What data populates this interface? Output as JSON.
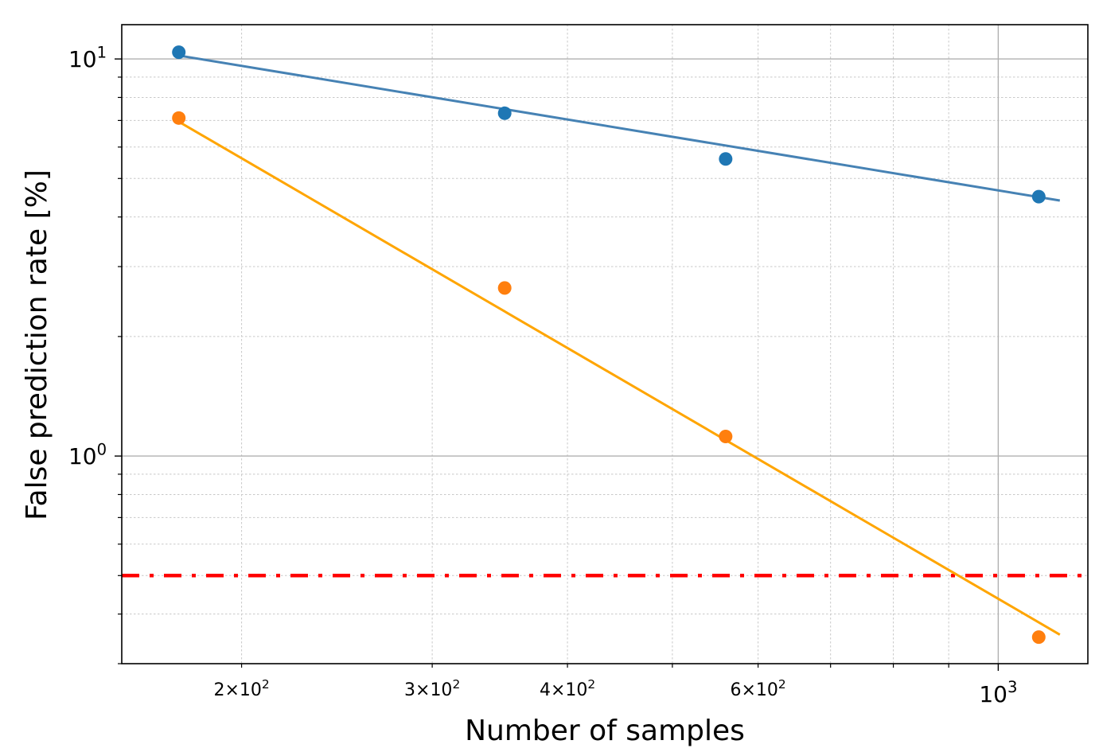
{
  "chart_data": {
    "type": "scatter",
    "title": "",
    "xlabel": "Number of samples",
    "ylabel": "False prediction rate [%]",
    "xscale": "log",
    "yscale": "log",
    "xlim": [
      155,
      1210
    ],
    "ylim": [
      0.3,
      12.2
    ],
    "grid": true,
    "legend": "none",
    "x_major_ticks": [
      {
        "value": 1000,
        "base": "10",
        "exp": "3"
      }
    ],
    "x_minor_ticks": [
      {
        "value": 200,
        "mant": "2",
        "base": "10",
        "exp": "2"
      },
      {
        "value": 300,
        "mant": "3",
        "base": "10",
        "exp": "2"
      },
      {
        "value": 400,
        "mant": "4",
        "base": "10",
        "exp": "2"
      },
      {
        "value": 600,
        "mant": "6",
        "base": "10",
        "exp": "2"
      }
    ],
    "x_unlabeled_minor": [
      500,
      700,
      800,
      900
    ],
    "y_major_ticks": [
      {
        "value": 1,
        "base": "10",
        "exp": "0"
      },
      {
        "value": 10,
        "base": "10",
        "exp": "1"
      }
    ],
    "y_minor_ticks": [
      0.3,
      0.4,
      0.5,
      0.6,
      0.7,
      0.8,
      0.9,
      2,
      3,
      4,
      5,
      6,
      7,
      8,
      9
    ],
    "series": [
      {
        "color": "#1f77b4",
        "fit_color": "#4682b4",
        "points": [
          {
            "x": 175,
            "y": 10.4
          },
          {
            "x": 350,
            "y": 7.3
          },
          {
            "x": 560,
            "y": 5.6
          },
          {
            "x": 1090,
            "y": 4.5
          }
        ],
        "fit_line": [
          [
            175,
            10.2
          ],
          [
            1140,
            4.4
          ]
        ]
      },
      {
        "color": "#ff7f0e",
        "fit_color": "#ffa500",
        "points": [
          {
            "x": 175,
            "y": 7.1
          },
          {
            "x": 350,
            "y": 2.65
          },
          {
            "x": 560,
            "y": 1.12
          },
          {
            "x": 1090,
            "y": 0.35
          }
        ],
        "fit_line": [
          [
            175,
            6.95
          ],
          [
            1140,
            0.355
          ]
        ]
      }
    ],
    "reference_line": {
      "y": 0.5,
      "color": "#ff0000",
      "style": "dash-dot"
    }
  }
}
